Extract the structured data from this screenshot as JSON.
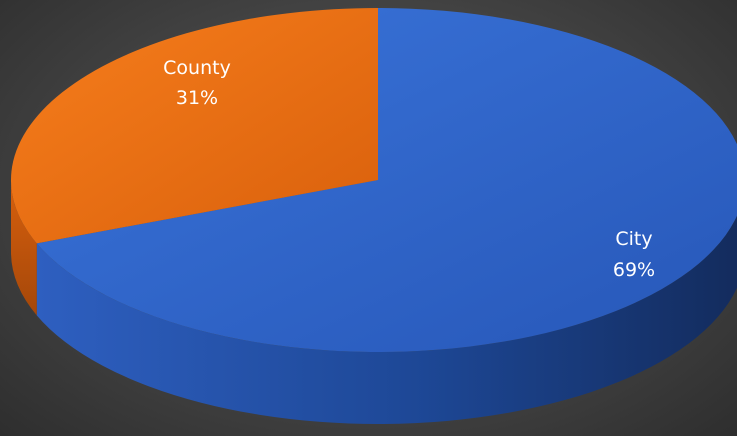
{
  "chart_data": {
    "type": "pie",
    "style": "3d",
    "legend": "none",
    "slices": [
      {
        "name": "City",
        "value": 69,
        "label": "69%",
        "color": "#2E64C9"
      },
      {
        "name": "County",
        "value": 31,
        "label": "31%",
        "color": "#F26F12"
      }
    ]
  }
}
